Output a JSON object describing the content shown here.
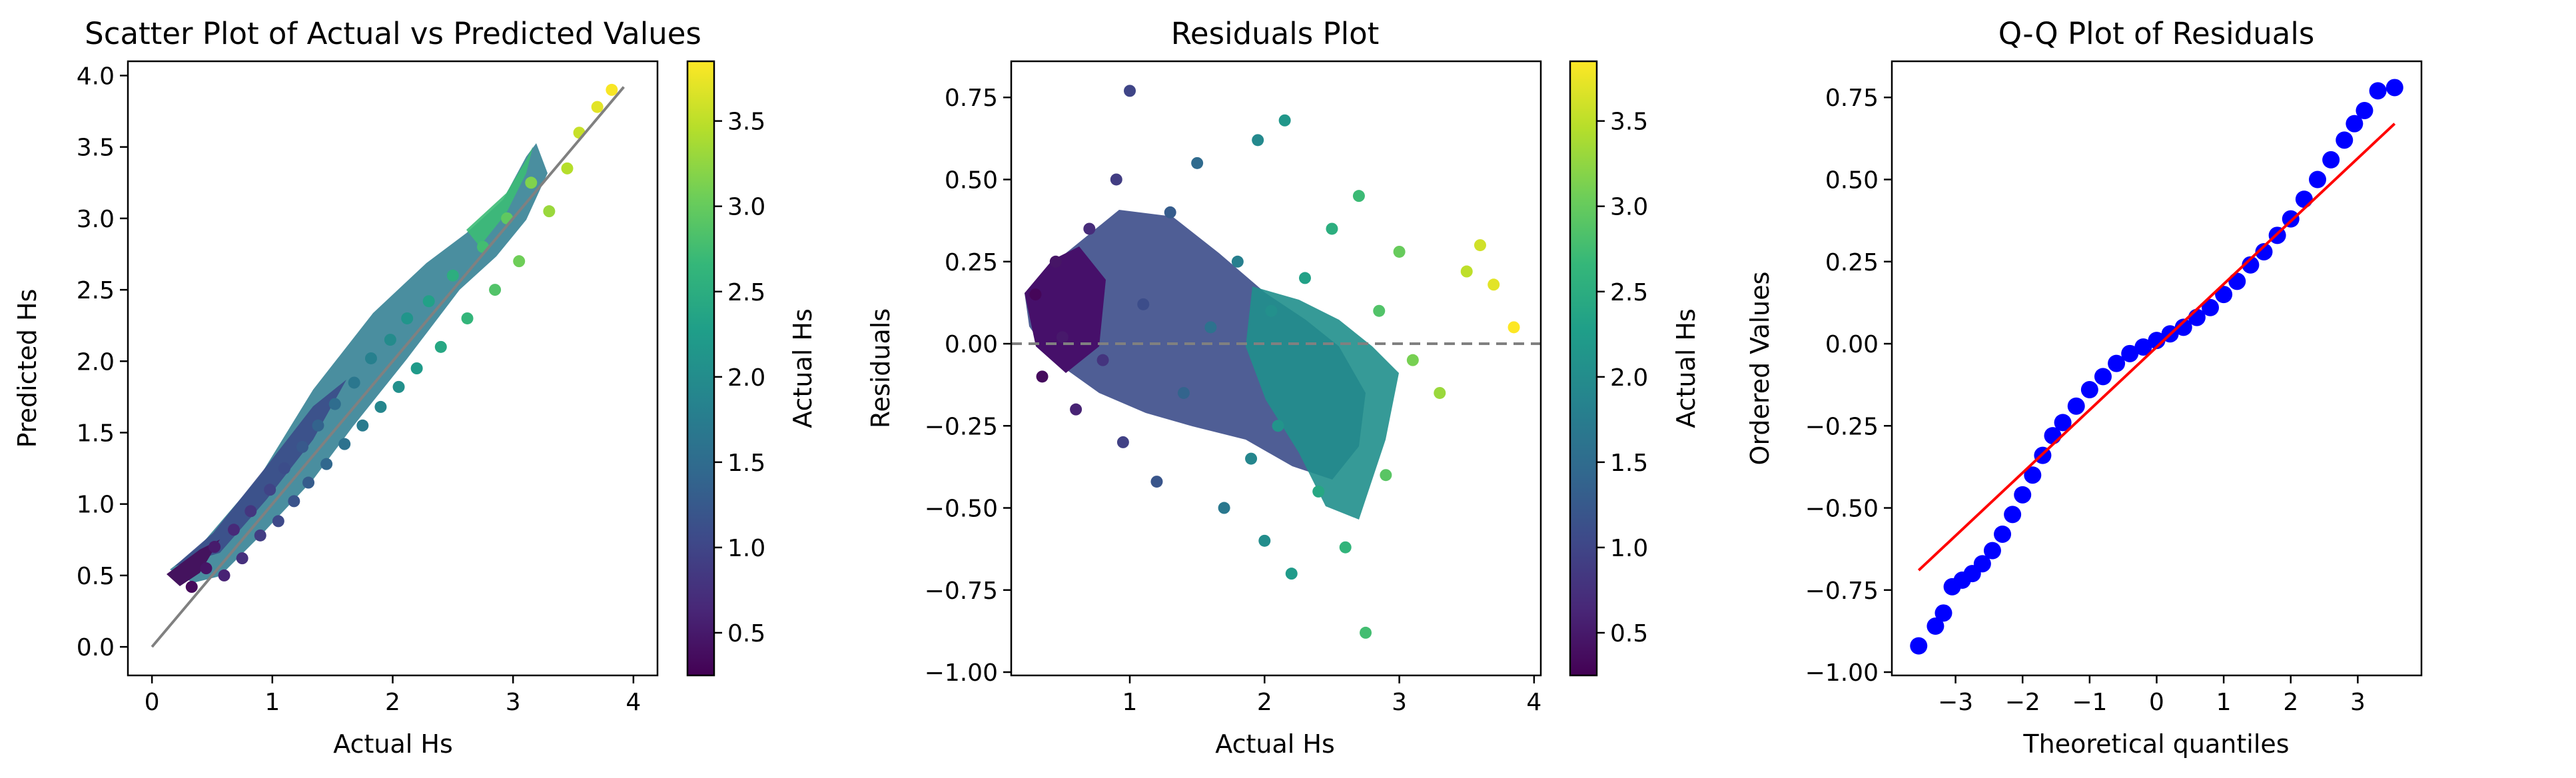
{
  "figure": {
    "description_note": "",
    "colormap_stops": [
      "#440154",
      "#482878",
      "#3e4989",
      "#31688e",
      "#26828e",
      "#1f9e89",
      "#35b779",
      "#6ece58",
      "#b5de2b",
      "#fde725"
    ]
  },
  "chart_data": [
    {
      "type": "scatter",
      "title": "Scatter Plot of Actual vs Predicted Values",
      "xlabel": "Actual Hs",
      "ylabel": "Predicted Hs",
      "xlim": [
        -0.2,
        4.2
      ],
      "ylim": [
        -0.2,
        4.1
      ],
      "xticks": [
        "0",
        "1",
        "2",
        "3",
        "4"
      ],
      "xtick_values": [
        0,
        1,
        2,
        3,
        4
      ],
      "yticks": [
        "0.0",
        "0.5",
        "1.0",
        "1.5",
        "2.0",
        "2.5",
        "3.0",
        "3.5",
        "4.0"
      ],
      "ytick_values": [
        0.0,
        0.5,
        1.0,
        1.5,
        2.0,
        2.5,
        3.0,
        3.5,
        4.0
      ],
      "grid": false,
      "color_by": "Actual Hs",
      "reference_line": {
        "from": [
          0,
          0
        ],
        "to": [
          3.92,
          3.92
        ],
        "color": "#808080"
      },
      "sample_points": [
        [
          0.33,
          0.42
        ],
        [
          0.45,
          0.55
        ],
        [
          0.52,
          0.7
        ],
        [
          0.6,
          0.5
        ],
        [
          0.68,
          0.82
        ],
        [
          0.75,
          0.62
        ],
        [
          0.82,
          0.95
        ],
        [
          0.9,
          0.78
        ],
        [
          0.98,
          1.1
        ],
        [
          1.05,
          0.88
        ],
        [
          1.1,
          1.25
        ],
        [
          1.18,
          1.02
        ],
        [
          1.25,
          1.4
        ],
        [
          1.3,
          1.15
        ],
        [
          1.38,
          1.55
        ],
        [
          1.45,
          1.28
        ],
        [
          1.52,
          1.7
        ],
        [
          1.6,
          1.42
        ],
        [
          1.68,
          1.85
        ],
        [
          1.75,
          1.55
        ],
        [
          1.82,
          2.02
        ],
        [
          1.9,
          1.68
        ],
        [
          1.98,
          2.15
        ],
        [
          2.05,
          1.82
        ],
        [
          2.12,
          2.3
        ],
        [
          2.2,
          1.95
        ],
        [
          2.3,
          2.42
        ],
        [
          2.4,
          2.1
        ],
        [
          2.5,
          2.6
        ],
        [
          2.62,
          2.3
        ],
        [
          2.75,
          2.8
        ],
        [
          2.85,
          2.5
        ],
        [
          2.95,
          3.0
        ],
        [
          3.05,
          2.7
        ],
        [
          3.15,
          3.25
        ],
        [
          3.3,
          3.05
        ],
        [
          3.45,
          3.35
        ],
        [
          3.55,
          3.6
        ],
        [
          3.7,
          3.78
        ],
        [
          3.82,
          3.9
        ]
      ],
      "colorbar": {
        "label": "Actual Hs",
        "range": [
          0.25,
          3.85
        ],
        "ticks": [
          "0.5",
          "1.0",
          "1.5",
          "2.0",
          "2.5",
          "3.0",
          "3.5"
        ],
        "tick_values": [
          0.5,
          1.0,
          1.5,
          2.0,
          2.5,
          3.0,
          3.5
        ]
      }
    },
    {
      "type": "scatter",
      "title": "Residuals Plot",
      "xlabel": "Actual Hs",
      "ylabel": "Residuals",
      "xlim": [
        0.12,
        4.05
      ],
      "ylim": [
        -1.01,
        0.86
      ],
      "xticks": [
        "1",
        "2",
        "3",
        "4"
      ],
      "xtick_values": [
        1,
        2,
        3,
        4
      ],
      "yticks": [
        "0.75",
        "0.50",
        "0.25",
        "0.00",
        "−0.25",
        "−0.50",
        "−0.75",
        "−1.00"
      ],
      "ytick_values": [
        0.75,
        0.5,
        0.25,
        0.0,
        -0.25,
        -0.5,
        -0.75,
        -1.0
      ],
      "grid": false,
      "color_by": "Actual Hs",
      "reference_line": {
        "y": 0,
        "style": "dashed",
        "color": "#808080"
      },
      "sample_points": [
        [
          0.3,
          0.15
        ],
        [
          0.35,
          -0.1
        ],
        [
          0.45,
          0.25
        ],
        [
          0.5,
          0.02
        ],
        [
          0.6,
          -0.2
        ],
        [
          0.7,
          0.35
        ],
        [
          0.8,
          -0.05
        ],
        [
          0.9,
          0.5
        ],
        [
          0.95,
          -0.3
        ],
        [
          1.0,
          0.77
        ],
        [
          1.1,
          0.12
        ],
        [
          1.2,
          -0.42
        ],
        [
          1.3,
          0.4
        ],
        [
          1.4,
          -0.15
        ],
        [
          1.5,
          0.55
        ],
        [
          1.6,
          0.05
        ],
        [
          1.7,
          -0.5
        ],
        [
          1.8,
          0.25
        ],
        [
          1.9,
          -0.35
        ],
        [
          1.95,
          0.62
        ],
        [
          2.0,
          -0.6
        ],
        [
          2.05,
          0.1
        ],
        [
          2.1,
          -0.25
        ],
        [
          2.15,
          0.68
        ],
        [
          2.2,
          -0.7
        ],
        [
          2.3,
          0.2
        ],
        [
          2.4,
          -0.45
        ],
        [
          2.5,
          0.35
        ],
        [
          2.6,
          -0.62
        ],
        [
          2.7,
          0.45
        ],
        [
          2.75,
          -0.88
        ],
        [
          2.85,
          0.1
        ],
        [
          2.9,
          -0.4
        ],
        [
          3.0,
          0.28
        ],
        [
          3.1,
          -0.05
        ],
        [
          3.3,
          -0.15
        ],
        [
          3.5,
          0.22
        ],
        [
          3.6,
          0.3
        ],
        [
          3.7,
          0.18
        ],
        [
          3.85,
          0.05
        ]
      ],
      "colorbar": {
        "label": "Actual Hs",
        "range": [
          0.25,
          3.85
        ],
        "ticks": [
          "0.5",
          "1.0",
          "1.5",
          "2.0",
          "2.5",
          "3.0",
          "3.5"
        ],
        "tick_values": [
          0.5,
          1.0,
          1.5,
          2.0,
          2.5,
          3.0,
          3.5
        ]
      }
    },
    {
      "type": "scatter",
      "title": "Q-Q Plot of Residuals",
      "xlabel": "Theoretical quantiles",
      "ylabel": "Ordered Values",
      "xlim": [
        -3.95,
        3.95
      ],
      "ylim": [
        -1.01,
        0.86
      ],
      "xticks": [
        "−3",
        "−2",
        "−1",
        "0",
        "1",
        "2",
        "3"
      ],
      "xtick_values": [
        -3,
        -2,
        -1,
        0,
        1,
        2,
        3
      ],
      "yticks": [
        "0.75",
        "0.50",
        "0.25",
        "0.00",
        "−0.25",
        "−0.50",
        "−0.75",
        "−1.00"
      ],
      "ytick_values": [
        0.75,
        0.5,
        0.25,
        0.0,
        -0.25,
        -0.5,
        -0.75,
        -1.0
      ],
      "grid": false,
      "marker_color": "#0000ff",
      "fit_line": {
        "from": [
          -3.55,
          -0.69
        ],
        "to": [
          3.55,
          0.67
        ],
        "color": "#ff0000"
      },
      "sample_points": [
        [
          -3.55,
          -0.92
        ],
        [
          -3.3,
          -0.86
        ],
        [
          -3.18,
          -0.82
        ],
        [
          -3.05,
          -0.74
        ],
        [
          -2.9,
          -0.72
        ],
        [
          -2.75,
          -0.7
        ],
        [
          -2.6,
          -0.67
        ],
        [
          -2.45,
          -0.63
        ],
        [
          -2.3,
          -0.58
        ],
        [
          -2.15,
          -0.52
        ],
        [
          -2.0,
          -0.46
        ],
        [
          -1.85,
          -0.4
        ],
        [
          -1.7,
          -0.34
        ],
        [
          -1.55,
          -0.28
        ],
        [
          -1.4,
          -0.24
        ],
        [
          -1.2,
          -0.19
        ],
        [
          -1.0,
          -0.14
        ],
        [
          -0.8,
          -0.1
        ],
        [
          -0.6,
          -0.06
        ],
        [
          -0.4,
          -0.03
        ],
        [
          -0.2,
          -0.01
        ],
        [
          0.0,
          0.01
        ],
        [
          0.2,
          0.03
        ],
        [
          0.4,
          0.05
        ],
        [
          0.6,
          0.08
        ],
        [
          0.8,
          0.11
        ],
        [
          1.0,
          0.15
        ],
        [
          1.2,
          0.19
        ],
        [
          1.4,
          0.24
        ],
        [
          1.6,
          0.28
        ],
        [
          1.8,
          0.33
        ],
        [
          2.0,
          0.38
        ],
        [
          2.2,
          0.44
        ],
        [
          2.4,
          0.5
        ],
        [
          2.6,
          0.56
        ],
        [
          2.8,
          0.62
        ],
        [
          2.95,
          0.67
        ],
        [
          3.1,
          0.71
        ],
        [
          3.3,
          0.77
        ],
        [
          3.55,
          0.78
        ]
      ]
    }
  ]
}
